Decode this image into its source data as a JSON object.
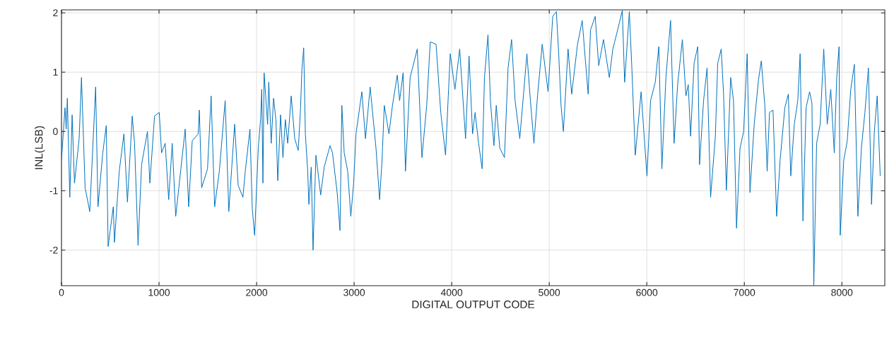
{
  "chart_data": {
    "type": "line",
    "xlabel": "DIGITAL OUTPUT CODE",
    "ylabel": "INL(LSB)",
    "color": "#0072bd",
    "grid": true,
    "xlim": [
      0,
      8440
    ],
    "ylim": [
      -2.6,
      2.05
    ],
    "xticks": [
      0,
      1000,
      2000,
      3000,
      4000,
      5000,
      6000,
      7000,
      8000
    ],
    "yticks": [
      -2,
      -1,
      0,
      1,
      2
    ],
    "x": [
      0,
      36,
      48,
      60,
      85,
      109,
      133,
      181,
      205,
      242,
      290,
      350,
      374,
      423,
      459,
      478,
      531,
      543,
      592,
      640,
      676,
      725,
      749,
      785,
      821,
      881,
      906,
      954,
      1002,
      1026,
      1063,
      1099,
      1135,
      1171,
      1268,
      1304,
      1340,
      1401,
      1413,
      1437,
      1497,
      1534,
      1570,
      1618,
      1678,
      1715,
      1775,
      1811,
      1860,
      1884,
      1932,
      1956,
      1980,
      2017,
      2041,
      2053,
      2065,
      2077,
      2113,
      2125,
      2150,
      2174,
      2198,
      2217,
      2246,
      2270,
      2295,
      2319,
      2355,
      2391,
      2427,
      2451,
      2464,
      2483,
      2500,
      2524,
      2536,
      2560,
      2579,
      2608,
      2657,
      2693,
      2753,
      2778,
      2826,
      2855,
      2874,
      2898,
      2934,
      2966,
      2995,
      3019,
      3079,
      3116,
      3164,
      3224,
      3261,
      3285,
      3309,
      3357,
      3393,
      3442,
      3466,
      3502,
      3526,
      3574,
      3647,
      3695,
      3744,
      3780,
      3840,
      3888,
      3937,
      3985,
      4033,
      4082,
      4142,
      4178,
      4214,
      4240,
      4276,
      4312,
      4336,
      4372,
      4397,
      4433,
      4457,
      4493,
      4541,
      4578,
      4614,
      4650,
      4698,
      4735,
      4771,
      4807,
      4843,
      4880,
      4928,
      4988,
      5036,
      5073,
      5097,
      5121,
      5145,
      5193,
      5230,
      5290,
      5338,
      5375,
      5399,
      5423,
      5471,
      5507,
      5556,
      5616,
      5652,
      5701,
      5749,
      5773,
      5821,
      5846,
      5882,
      5942,
      5978,
      6002,
      6039,
      6087,
      6123,
      6155,
      6196,
      6244,
      6280,
      6316,
      6365,
      6401,
      6425,
      6449,
      6485,
      6522,
      6541,
      6582,
      6618,
      6654,
      6703,
      6727,
      6763,
      6787,
      6816,
      6860,
      6889,
      6920,
      6956,
      6993,
      7029,
      7058,
      7101,
      7145,
      7174,
      7210,
      7234,
      7258,
      7294,
      7331,
      7367,
      7415,
      7451,
      7476,
      7512,
      7548,
      7572,
      7601,
      7633,
      7669,
      7693,
      7712,
      7741,
      7777,
      7814,
      7850,
      7886,
      7922,
      7947,
      7971,
      7983,
      8019,
      8055,
      8091,
      8128,
      8164,
      8200,
      8236,
      8272,
      8304,
      8333,
      8362,
      8393
    ],
    "values": [
      -0.48,
      0.4,
      0.04,
      0.56,
      -1.11,
      0.28,
      -0.87,
      -0.12,
      0.91,
      -0.95,
      -1.35,
      0.75,
      -1.27,
      -0.36,
      0.1,
      -1.94,
      -1.27,
      -1.87,
      -0.67,
      -0.04,
      -1.19,
      0.26,
      -0.2,
      -1.92,
      -0.56,
      0,
      -0.87,
      0.26,
      0.32,
      -0.36,
      -0.2,
      -1.15,
      -0.2,
      -1.43,
      0.04,
      -1.27,
      -0.16,
      -0.04,
      0.36,
      -0.95,
      -0.63,
      0.6,
      -1.27,
      -0.67,
      0.52,
      -1.35,
      0.12,
      -0.91,
      -1.11,
      -0.67,
      0.04,
      -1.31,
      -1.75,
      -0.28,
      0.2,
      0.71,
      -0.87,
      0.99,
      0.12,
      0.83,
      -0.2,
      0.56,
      0.2,
      -0.83,
      0.28,
      -0.44,
      0.2,
      -0.2,
      0.6,
      -0.12,
      -0.32,
      0.4,
      1.03,
      1.41,
      -0.04,
      -0.67,
      -1.23,
      -0.6,
      -2.0,
      -0.4,
      -1.07,
      -0.6,
      -0.24,
      -0.36,
      -1.03,
      -1.67,
      0.44,
      -0.36,
      -0.67,
      -1.43,
      -0.87,
      -0.04,
      0.67,
      -0.12,
      0.75,
      -0.28,
      -1.15,
      -0.52,
      0.44,
      -0.04,
      0.44,
      0.95,
      0.52,
      0.99,
      -0.67,
      0.91,
      1.39,
      -0.44,
      0.44,
      1.51,
      1.47,
      0.32,
      -0.4,
      1.31,
      0.71,
      1.39,
      -0.12,
      1.27,
      -0.04,
      0.32,
      -0.2,
      -0.63,
      0.91,
      1.63,
      0.52,
      -0.24,
      0.44,
      -0.28,
      -0.44,
      1.07,
      1.55,
      0.52,
      -0.12,
      0.6,
      1.31,
      0.52,
      -0.2,
      0.6,
      1.47,
      0.67,
      1.94,
      2.02,
      1.31,
      0.44,
      0,
      1.39,
      0.63,
      1.47,
      1.87,
      1.11,
      0.63,
      1.71,
      1.94,
      1.11,
      1.55,
      0.91,
      1.39,
      1.71,
      2.04,
      0.83,
      2.02,
      1.11,
      -0.4,
      0.67,
      -0.2,
      -0.75,
      0.52,
      0.83,
      1.43,
      -0.63,
      0.91,
      1.87,
      -0.2,
      0.79,
      1.55,
      0.6,
      0.79,
      -0.08,
      1.15,
      1.43,
      -0.56,
      0.52,
      1.07,
      -1.11,
      -0.08,
      1.15,
      1.39,
      0.63,
      -0.99,
      0.91,
      0.52,
      -1.63,
      -0.28,
      0,
      1.31,
      -1.03,
      0.12,
      0.87,
      1.19,
      0.44,
      -0.67,
      0.32,
      0.36,
      -1.43,
      -0.48,
      0.4,
      0.63,
      -0.75,
      0.12,
      0.52,
      1.31,
      -1.51,
      0.4,
      0.67,
      0.48,
      -2.6,
      -0.2,
      0.12,
      1.39,
      0.12,
      0.71,
      -0.36,
      0.91,
      1.43,
      -1.75,
      -0.48,
      -0.16,
      0.71,
      1.13,
      -1.43,
      -0.28,
      0.32,
      1.07,
      -1.23,
      0,
      0.6,
      -0.75
    ]
  }
}
